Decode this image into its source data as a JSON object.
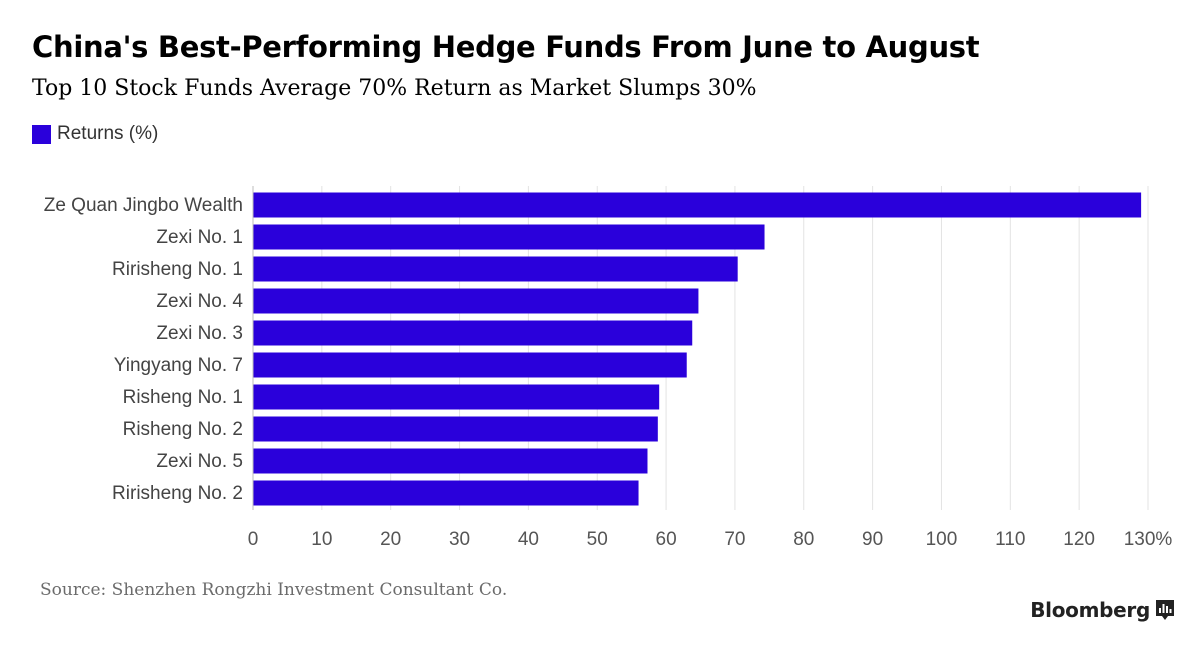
{
  "header": {
    "title": "China's Best-Performing Hedge Funds From June to August",
    "subtitle": "Top 10 Stock Funds Average 70% Return as Market Slumps 30%"
  },
  "legend": {
    "label": "Returns (%)",
    "color": "#2a00db"
  },
  "footer": {
    "source": "Source: Shenzhen Rongzhi Investment Consultant Co.",
    "brand": "Bloomberg"
  },
  "chart_data": {
    "type": "bar",
    "orientation": "horizontal",
    "title": "China's Best-Performing Hedge Funds From June to August",
    "subtitle": "Top 10 Stock Funds Average 70% Return as Market Slumps 30%",
    "categories": [
      "Ze Quan Jingbo Wealth",
      "Zexi No. 1",
      "Ririsheng No. 1",
      "Zexi No. 4",
      "Zexi No. 3",
      "Yingyang No. 7",
      "Risheng No. 1",
      "Risheng No. 2",
      "Zexi No. 5",
      "Ririsheng No. 2"
    ],
    "series": [
      {
        "name": "Returns (%)",
        "values": [
          129,
          74.3,
          70.4,
          64.7,
          63.8,
          63.0,
          59.0,
          58.8,
          57.3,
          56.0
        ]
      }
    ],
    "xlim": [
      0,
      130
    ],
    "ticks": [
      0,
      10,
      20,
      30,
      40,
      50,
      60,
      70,
      80,
      90,
      100,
      110,
      120,
      130
    ],
    "tick_labels": [
      "0",
      "10",
      "20",
      "30",
      "40",
      "50",
      "60",
      "70",
      "80",
      "90",
      "100",
      "110",
      "120",
      "130%"
    ],
    "xlabel": "",
    "ylabel": "",
    "grid": true,
    "legend_position": "top-left",
    "bar_color": "#2a00db"
  }
}
